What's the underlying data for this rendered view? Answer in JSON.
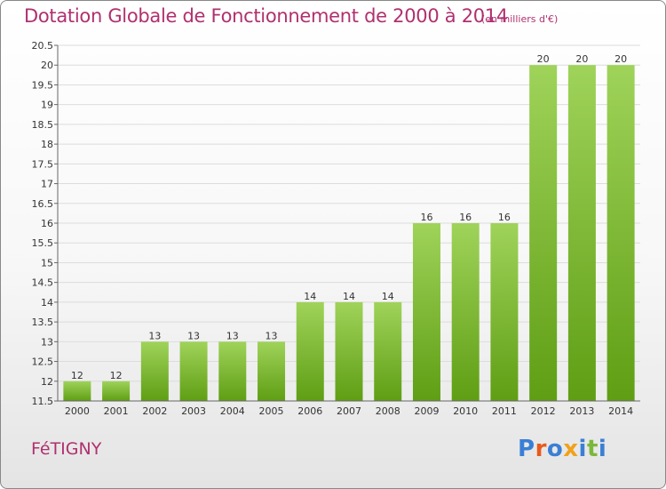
{
  "header": {
    "title": "Dotation Globale de Fonctionnement de 2000 à 2014",
    "unit": "(en milliers d'€)"
  },
  "footer": {
    "commune": "FéTIGNY",
    "brand": "Proxiti"
  },
  "colors": {
    "title": "#b0306f",
    "bar_top": "#9fd35a",
    "bar_bottom": "#5f9e14",
    "brand_letters": [
      "#3a7fd5",
      "#e85a1c",
      "#3a7fd5",
      "#f0a21c",
      "#3a7fd5",
      "#7ab83a",
      "#3a7fd5"
    ]
  },
  "chart_data": {
    "type": "bar",
    "title": "Dotation Globale de Fonctionnement de 2000 à 2014",
    "subtitle": "(en milliers d'€)",
    "categories": [
      "2000",
      "2001",
      "2002",
      "2003",
      "2004",
      "2005",
      "2006",
      "2007",
      "2008",
      "2009",
      "2010",
      "2011",
      "2012",
      "2013",
      "2014"
    ],
    "values": [
      12,
      12,
      13,
      13,
      13,
      13,
      14,
      14,
      14,
      16,
      16,
      16,
      20,
      20,
      20
    ],
    "data_labels": [
      "12",
      "12",
      "13",
      "13",
      "13",
      "13",
      "14",
      "14",
      "14",
      "16",
      "16",
      "16",
      "20",
      "20",
      "20"
    ],
    "ylim": [
      11.5,
      20.5
    ],
    "yticks": [
      "11.5",
      "12",
      "12.5",
      "13",
      "13.5",
      "14",
      "14.5",
      "15",
      "15.5",
      "16",
      "16.5",
      "17",
      "17.5",
      "18",
      "18.5",
      "19",
      "19.5",
      "20",
      "20.5"
    ],
    "xlabel": "",
    "ylabel": "",
    "grid": true,
    "legend": false
  }
}
